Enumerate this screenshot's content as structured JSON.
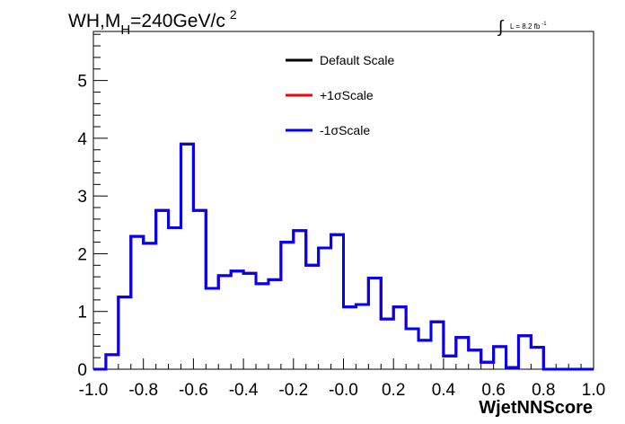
{
  "chart_data": {
    "type": "step",
    "title": {
      "main": "WH,M",
      "sub": "H",
      "rest": "=240GeV/c",
      "sup": "2"
    },
    "lumi": {
      "integral": "∫",
      "text": "L = 8.2 fb",
      "sup": "-1"
    },
    "xlabel": "WjetNNScore",
    "ylabel": "",
    "xlim": [
      -1.0,
      1.0
    ],
    "ylim": [
      0,
      5.85
    ],
    "x_ticks": [
      "-1.0",
      "-0.8",
      "-0.6",
      "-0.4",
      "-0.2",
      "-0.0",
      "0.2",
      "0.4",
      "0.6",
      "0.8",
      "1.0"
    ],
    "y_ticks": [
      "0",
      "1",
      "2",
      "3",
      "4",
      "5"
    ],
    "bin_edges": [
      -1.0,
      -0.95,
      -0.9,
      -0.85,
      -0.8,
      -0.75,
      -0.7,
      -0.65,
      -0.6,
      -0.55,
      -0.5,
      -0.45,
      -0.4,
      -0.35,
      -0.3,
      -0.25,
      -0.2,
      -0.15,
      -0.1,
      -0.05,
      0.0,
      0.05,
      0.1,
      0.15,
      0.2,
      0.25,
      0.3,
      0.35,
      0.4,
      0.45,
      0.5,
      0.55,
      0.6,
      0.65,
      0.7,
      0.75,
      0.8,
      0.85,
      0.9,
      0.95,
      1.0
    ],
    "series": [
      {
        "name": "Default Scale",
        "color": "#000000",
        "values": [
          0.0,
          0.25,
          1.25,
          2.3,
          2.18,
          2.75,
          2.45,
          3.9,
          2.75,
          1.4,
          1.62,
          1.7,
          1.66,
          1.48,
          1.55,
          2.2,
          2.4,
          1.8,
          2.1,
          2.33,
          1.08,
          1.12,
          1.58,
          0.87,
          1.08,
          0.7,
          0.5,
          0.82,
          0.23,
          0.55,
          0.33,
          0.12,
          0.39,
          0.03,
          0.58,
          0.38,
          0.0,
          0.0,
          0.0,
          0.0
        ]
      },
      {
        "name": "+1σScale",
        "color": "#ff0000",
        "values": [
          0.0,
          0.25,
          1.25,
          2.3,
          2.18,
          2.75,
          2.45,
          3.9,
          2.75,
          1.4,
          1.62,
          1.7,
          1.66,
          1.48,
          1.55,
          2.2,
          2.4,
          1.8,
          2.1,
          2.33,
          1.08,
          1.12,
          1.58,
          0.87,
          1.08,
          0.7,
          0.5,
          0.82,
          0.23,
          0.55,
          0.33,
          0.12,
          0.39,
          0.03,
          0.58,
          0.38,
          0.0,
          0.0,
          0.0,
          0.0
        ]
      },
      {
        "name": "-1σScale",
        "color": "#0000ff",
        "values": [
          0.0,
          0.25,
          1.25,
          2.3,
          2.18,
          2.75,
          2.45,
          3.9,
          2.75,
          1.4,
          1.62,
          1.7,
          1.66,
          1.48,
          1.55,
          2.2,
          2.4,
          1.8,
          2.1,
          2.33,
          1.08,
          1.12,
          1.58,
          0.87,
          1.08,
          0.7,
          0.5,
          0.82,
          0.23,
          0.55,
          0.33,
          0.12,
          0.39,
          0.03,
          0.58,
          0.38,
          0.0,
          0.0,
          0.0,
          0.0
        ]
      }
    ],
    "legend": "top-center",
    "grid": false
  }
}
